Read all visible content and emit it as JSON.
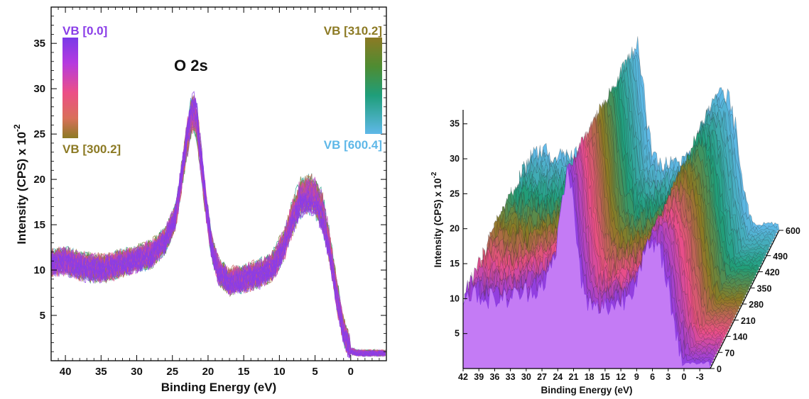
{
  "chart_data": [
    {
      "type": "line",
      "xlabel": "Binding Energy (eV)",
      "ylabel_main": "Intensity (CPS) x 10",
      "ylabel_exp": "-2",
      "x_reversed": true,
      "xlim": [
        42,
        -5
      ],
      "ylim": [
        0,
        39
      ],
      "xticks": [
        "40",
        "35",
        "30",
        "25",
        "20",
        "15",
        "10",
        "5",
        "0"
      ],
      "yticks": [
        "5",
        "10",
        "15",
        "20",
        "25",
        "30",
        "35"
      ],
      "annotation": "O 2s",
      "colorbar_left": {
        "top_label": "VB [0.0]",
        "bottom_label": "VB [300.2]"
      },
      "colorbar_right": {
        "top_label": "VB [310.2]",
        "bottom_label": "VB [600.4]"
      },
      "colors": {
        "scan_0": "#8a3de8",
        "scan_150": "#ec4f86",
        "scan_300": "#8c7a24",
        "scan_310": "#8c7a24",
        "scan_460": "#1f9e7a",
        "scan_600": "#5fb8e8"
      },
      "series_profile": {
        "x": [
          42,
          40,
          38,
          36,
          34,
          32,
          30,
          28,
          26,
          24.5,
          23.5,
          22.5,
          22,
          21.5,
          20.5,
          19.5,
          18.5,
          17,
          15,
          13,
          11,
          9.5,
          8,
          7,
          6,
          5,
          4,
          3,
          2,
          1,
          0,
          -1,
          -3,
          -5
        ],
        "y_first": [
          10.5,
          10.8,
          10.2,
          10.0,
          10.0,
          10.5,
          11.0,
          11.5,
          13.0,
          16.0,
          22.0,
          27.5,
          28.5,
          27.0,
          19.0,
          12.5,
          9.5,
          8.5,
          8.8,
          9.2,
          10.0,
          12.0,
          15.5,
          17.0,
          17.5,
          17.0,
          15.5,
          12.0,
          7.0,
          3.0,
          1.0,
          0.8,
          0.8,
          0.8
        ],
        "y_last": [
          11.0,
          11.3,
          10.7,
          10.5,
          10.5,
          11.0,
          11.5,
          12.0,
          13.5,
          16.0,
          21.0,
          25.5,
          26.5,
          25.0,
          18.0,
          12.5,
          10.0,
          9.0,
          9.3,
          9.8,
          10.8,
          13.0,
          17.0,
          19.0,
          19.5,
          19.0,
          17.5,
          13.5,
          8.0,
          3.5,
          1.2,
          0.9,
          0.9,
          0.9
        ]
      },
      "n_scans": 60
    },
    {
      "type": "area",
      "subtype": "waterfall-3d",
      "xlabel": "Binding Energy (eV)",
      "ylabel_main": "Intensity (CPS) x 10",
      "ylabel_exp": "-2",
      "x_reversed": true,
      "xlim": [
        42,
        -5
      ],
      "ylim": [
        0,
        37
      ],
      "xticks": [
        "42",
        "39",
        "36",
        "33",
        "30",
        "27",
        "24",
        "21",
        "18",
        "15",
        "12",
        "9",
        "6",
        "3",
        "0",
        "-3"
      ],
      "yticks": [
        "5",
        "10",
        "15",
        "20",
        "25",
        "30",
        "35"
      ],
      "zlabel": "",
      "zticks": [
        "0",
        "70",
        "140",
        "210",
        "280",
        "350",
        "420",
        "490",
        "600"
      ],
      "zlim": [
        0,
        600
      ],
      "n_traces": 50,
      "colors": {
        "z_0": "#8a3de8",
        "z_140": "#ec4f86",
        "z_280": "#8c7a24",
        "z_420": "#1f9e7a",
        "z_600": "#5fb8e8",
        "front_fill": "#c47bf5"
      }
    }
  ]
}
